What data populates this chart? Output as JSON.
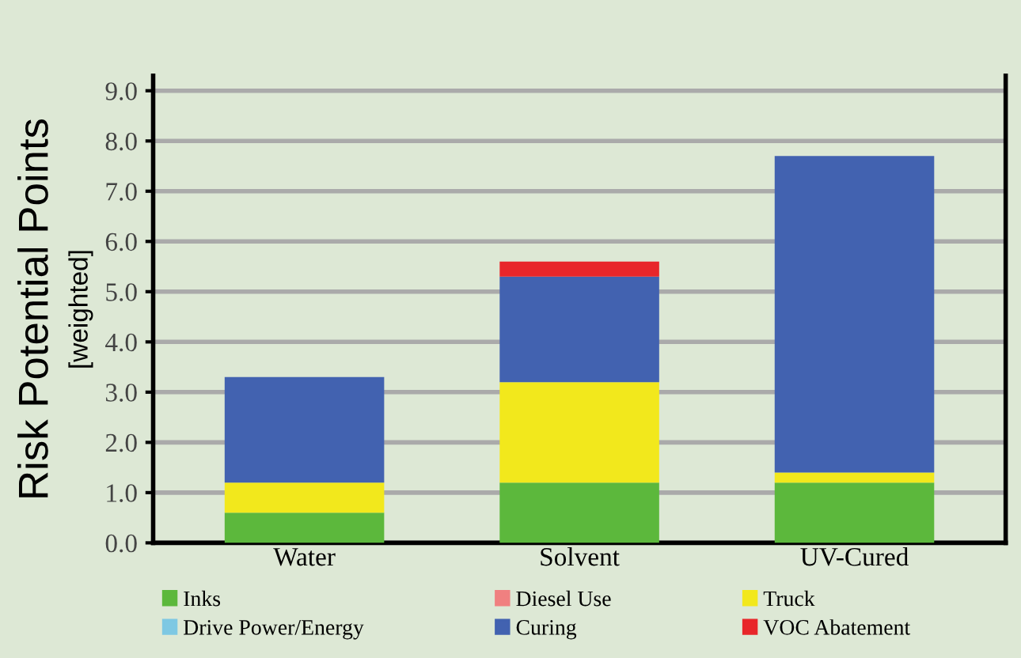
{
  "chart_data": {
    "type": "bar",
    "stacked": true,
    "ylabel": "Risk Potential Points",
    "annotations": [
      "[weighted]"
    ],
    "categories": [
      "Water",
      "Solvent",
      "UV-Cured"
    ],
    "series": [
      {
        "name": "Inks",
        "color": "#5cb83c",
        "values": [
          0.6,
          1.2,
          1.2
        ]
      },
      {
        "name": "Diesel Use",
        "color": "#f08080",
        "values": [
          0,
          0,
          0
        ]
      },
      {
        "name": "Truck",
        "color": "#f2e81c",
        "values": [
          0.6,
          2.0,
          0.2
        ]
      },
      {
        "name": "Drive Power/Energy",
        "color": "#7ec8e3",
        "values": [
          0,
          0,
          0
        ]
      },
      {
        "name": "Curing",
        "color": "#4262b0",
        "values": [
          2.1,
          2.1,
          6.3
        ]
      },
      {
        "name": "VOC Abatement",
        "color": "#e8262a",
        "values": [
          0,
          0.3,
          0
        ]
      }
    ],
    "ylim": [
      0,
      9.3
    ],
    "yticks": [
      {
        "value": 0,
        "label": "0.0"
      },
      {
        "value": 1,
        "label": "1.0"
      },
      {
        "value": 2,
        "label": "2.0"
      },
      {
        "value": 3,
        "label": "3.0"
      },
      {
        "value": 4,
        "label": "4.0"
      },
      {
        "value": 5,
        "label": "5.0"
      },
      {
        "value": 6,
        "label": "6.0"
      },
      {
        "value": 7,
        "label": "7.0"
      },
      {
        "value": 8,
        "label": "8.0"
      },
      {
        "value": 9,
        "label": "9.0"
      }
    ],
    "grid": "y",
    "legend": "bottom"
  }
}
